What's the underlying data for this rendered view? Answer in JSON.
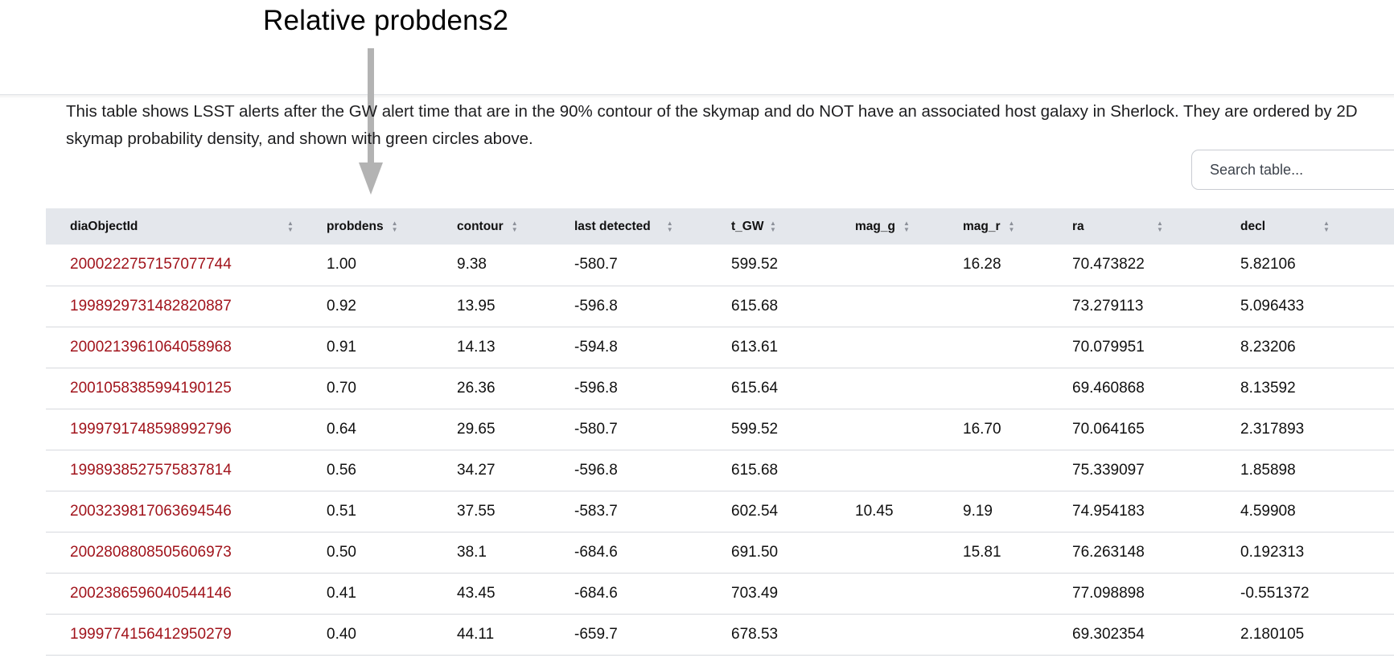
{
  "annotation": {
    "label": "Relative probdens2"
  },
  "description": "This table shows LSST alerts after the GW alert time that are in the 90% contour of the skymap and do NOT have an associated host galaxy in Sherlock. They are ordered by 2D skymap probability density, and shown with green circles above.",
  "search": {
    "placeholder": "Search table..."
  },
  "colors": {
    "link": "#a1141c",
    "header_bg": "#e4e7ec",
    "arrow": "#b3b3b3"
  },
  "table": {
    "columns": [
      "diaObjectId",
      "probdens",
      "contour",
      "last detected",
      "t_GW",
      "mag_g",
      "mag_r",
      "ra",
      "decl"
    ],
    "rows": [
      [
        "2000222757157077744",
        "1.00",
        "9.38",
        "-580.7",
        "599.52",
        "",
        "16.28",
        "70.473822",
        "5.82106"
      ],
      [
        "1998929731482820887",
        "0.92",
        "13.95",
        "-596.8",
        "615.68",
        "",
        "",
        "73.279113",
        "5.096433"
      ],
      [
        "2000213961064058968",
        "0.91",
        "14.13",
        "-594.8",
        "613.61",
        "",
        "",
        "70.079951",
        "8.23206"
      ],
      [
        "2001058385994190125",
        "0.70",
        "26.36",
        "-596.8",
        "615.64",
        "",
        "",
        "69.460868",
        "8.13592"
      ],
      [
        "1999791748598992796",
        "0.64",
        "29.65",
        "-580.7",
        "599.52",
        "",
        "16.70",
        "70.064165",
        "2.317893"
      ],
      [
        "1998938527575837814",
        "0.56",
        "34.27",
        "-596.8",
        "615.68",
        "",
        "",
        "75.339097",
        "1.85898"
      ],
      [
        "2003239817063694546",
        "0.51",
        "37.55",
        "-583.7",
        "602.54",
        "10.45",
        "9.19",
        "74.954183",
        "4.59908"
      ],
      [
        "2002808808505606973",
        "0.50",
        "38.1",
        "-684.6",
        "691.50",
        "",
        "15.81",
        "76.263148",
        "0.192313"
      ],
      [
        "2002386596040544146",
        "0.41",
        "43.45",
        "-684.6",
        "703.49",
        "",
        "",
        "77.098898",
        "-0.551372"
      ],
      [
        "1999774156412950279",
        "0.40",
        "44.11",
        "-659.7",
        "678.53",
        "",
        "",
        "69.302354",
        "2.180105"
      ]
    ]
  }
}
